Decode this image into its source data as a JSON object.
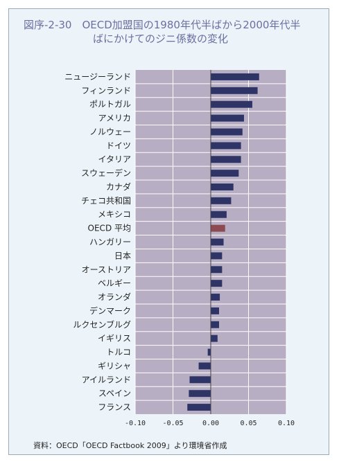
{
  "title_line1": "図序-2-30　OECD加盟国の1980年代半ばから2000年代半",
  "title_line2": "ばにかけてのジニ係数の変化",
  "source": "資料：OECD「OECD Factbook 2009」より環境省作成",
  "colors": {
    "plot_bg": "#b7aec3",
    "bar": "#2e3466",
    "highlight_bar": "#8e4a52",
    "grid": "#ffffff",
    "frame_bg": "#edf4f9"
  },
  "chart_data": {
    "type": "bar",
    "orientation": "horizontal",
    "title": "図序-2-30　OECD加盟国の1980年代半ばから2000年代半ばにかけてのジニ係数の変化",
    "categories": [
      "ニュージーランド",
      "フィンランド",
      "ポルトガル",
      "アメリカ",
      "ノルウェー",
      "ドイツ",
      "イタリア",
      "スウェーデン",
      "カナダ",
      "チェコ共和国",
      "メキシコ",
      "OECD 平均",
      "ハンガリー",
      "日本",
      "オーストリア",
      "ベルギー",
      "オランダ",
      "デンマーク",
      "ルクセンブルグ",
      "イギリス",
      "トルコ",
      "ギリシャ",
      "アイルランド",
      "スペイン",
      "フランス"
    ],
    "values": [
      0.064,
      0.062,
      0.055,
      0.044,
      0.042,
      0.04,
      0.04,
      0.037,
      0.03,
      0.027,
      0.021,
      0.019,
      0.017,
      0.015,
      0.015,
      0.015,
      0.012,
      0.011,
      0.011,
      0.009,
      -0.004,
      -0.016,
      -0.028,
      -0.029,
      -0.031
    ],
    "highlight": "OECD 平均",
    "x_ticks": [
      "-0.10",
      "-0.05",
      "0.00",
      "0.05",
      "0.10"
    ],
    "xlim": [
      -0.1,
      0.1
    ],
    "grid": true,
    "xlabel": "",
    "ylabel": ""
  }
}
